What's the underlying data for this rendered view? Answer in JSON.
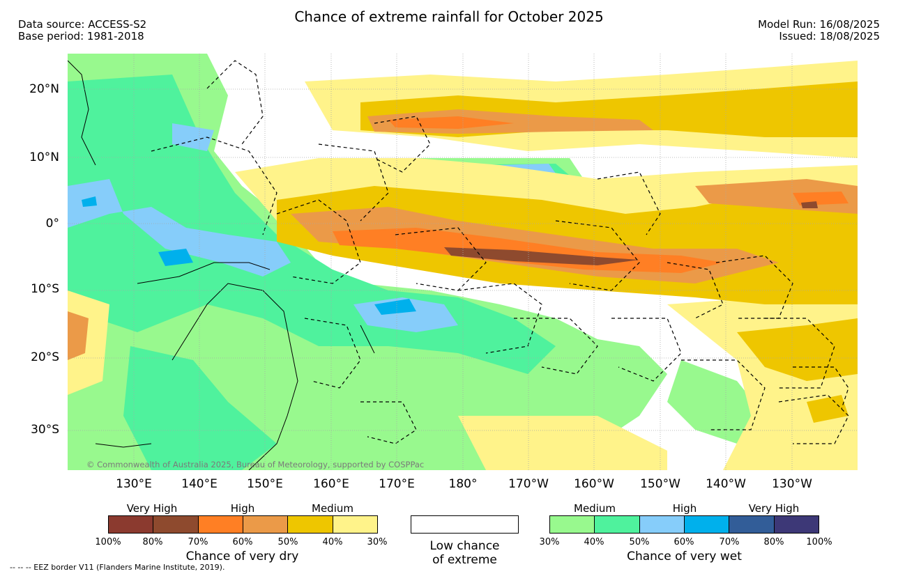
{
  "title": "Chance of extreme rainfall for October 2025",
  "meta": {
    "data_source": "Data source: ACCESS-S2",
    "base_period": "Base period: 1981-2018",
    "model_run": "Model Run: 16/08/2025",
    "issued": "Issued: 18/08/2025"
  },
  "map": {
    "lat_labels": [
      "20°N",
      "10°N",
      "0°",
      "10°S",
      "20°S",
      "30°S"
    ],
    "lon_labels": [
      "130°E",
      "140°E",
      "150°E",
      "160°E",
      "170°E",
      "180°",
      "170°W",
      "160°W",
      "150°W",
      "140°W",
      "130°W"
    ],
    "credit": "© Commonwealth of Australia 2025, Bureau of Meteorology, supported by COSPPac"
  },
  "legend": {
    "dry": {
      "categories": [
        "Very High",
        "High",
        "Medium"
      ],
      "ticks": [
        "100%",
        "80%",
        "70%",
        "60%",
        "50%",
        "40%",
        "30%"
      ],
      "colors": [
        "#8b3a2f",
        "#8e4a2e",
        "#ff7f24",
        "#eb9a48",
        "#eec600",
        "#fff38a"
      ],
      "caption": "Chance of very dry"
    },
    "low": {
      "color": "#ffffff",
      "caption_line1": "Low chance",
      "caption_line2": "of extreme"
    },
    "wet": {
      "categories": [
        "Medium",
        "High",
        "Very High"
      ],
      "ticks": [
        "30%",
        "40%",
        "50%",
        "60%",
        "70%",
        "80%",
        "100%"
      ],
      "colors": [
        "#98f98e",
        "#4ff29d",
        "#86cdfa",
        "#00b0ec",
        "#325d98",
        "#3d3877"
      ],
      "caption": "Chance of very wet"
    }
  },
  "footer": "-- -- -- EEZ border V11 (Flanders Marine Institute, 2019)."
}
